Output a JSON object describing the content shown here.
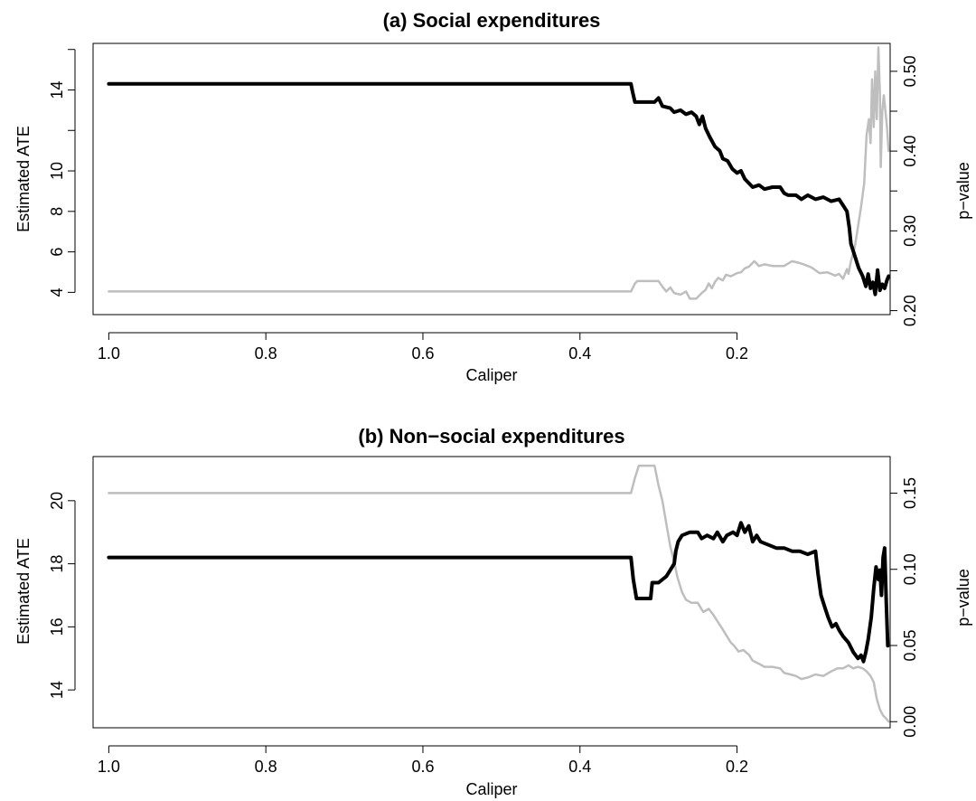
{
  "colors": {
    "ate_line": "#000000",
    "pvalue_line": "#bebebe",
    "axes": "#000000",
    "background": "#ffffff"
  },
  "chart_data": [
    {
      "type": "line",
      "title": "(a) Social expenditures",
      "xlabel": "Caliper",
      "ylabel_left": "Estimated ATE",
      "ylabel_right": "p−value",
      "x_reversed": true,
      "xlim": [
        1.02,
        0.005
      ],
      "x_ticks": [
        1.0,
        0.8,
        0.6,
        0.4,
        0.2
      ],
      "x_tick_labels": [
        "1.0",
        "0.8",
        "0.6",
        "0.4",
        "0.2"
      ],
      "ylim_left": [
        2.9,
        16.3
      ],
      "y_ticks_left": [
        4,
        6,
        8,
        10,
        12,
        14,
        16
      ],
      "y_tick_labels_left": [
        "4",
        "6",
        "8",
        "10",
        "",
        "14",
        ""
      ],
      "ylim_right": [
        0.195,
        0.535
      ],
      "y_ticks_right": [
        0.2,
        0.25,
        0.3,
        0.35,
        0.4,
        0.45,
        0.5
      ],
      "y_tick_labels_right": [
        "0.20",
        "",
        "0.30",
        "",
        "0.40",
        "",
        "0.50"
      ],
      "grid": false,
      "series": [
        {
          "axis": "left",
          "values": [
            [
              1.0,
              14.3
            ],
            [
              0.335,
              14.3
            ],
            [
              0.333,
              13.9
            ],
            [
              0.33,
              13.4
            ],
            [
              0.305,
              13.4
            ],
            [
              0.3,
              13.6
            ],
            [
              0.295,
              13.2
            ],
            [
              0.285,
              13.1
            ],
            [
              0.28,
              12.9
            ],
            [
              0.272,
              13.0
            ],
            [
              0.265,
              12.8
            ],
            [
              0.258,
              12.9
            ],
            [
              0.252,
              12.7
            ],
            [
              0.248,
              12.3
            ],
            [
              0.244,
              12.7
            ],
            [
              0.24,
              12.1
            ],
            [
              0.235,
              11.7
            ],
            [
              0.228,
              11.2
            ],
            [
              0.222,
              11.0
            ],
            [
              0.218,
              10.6
            ],
            [
              0.212,
              10.5
            ],
            [
              0.206,
              10.1
            ],
            [
              0.2,
              9.9
            ],
            [
              0.195,
              10.0
            ],
            [
              0.19,
              9.6
            ],
            [
              0.18,
              9.2
            ],
            [
              0.172,
              9.3
            ],
            [
              0.165,
              9.1
            ],
            [
              0.155,
              9.2
            ],
            [
              0.145,
              9.2
            ],
            [
              0.14,
              8.9
            ],
            [
              0.135,
              8.8
            ],
            [
              0.125,
              8.8
            ],
            [
              0.118,
              8.6
            ],
            [
              0.11,
              8.8
            ],
            [
              0.1,
              8.6
            ],
            [
              0.09,
              8.7
            ],
            [
              0.08,
              8.5
            ],
            [
              0.07,
              8.6
            ],
            [
              0.065,
              8.3
            ],
            [
              0.06,
              8.0
            ],
            [
              0.057,
              7.2
            ],
            [
              0.055,
              6.4
            ],
            [
              0.05,
              5.8
            ],
            [
              0.045,
              5.2
            ],
            [
              0.04,
              4.8
            ],
            [
              0.036,
              4.3
            ],
            [
              0.033,
              4.9
            ],
            [
              0.03,
              4.2
            ],
            [
              0.027,
              4.5
            ],
            [
              0.024,
              3.9
            ],
            [
              0.021,
              5.1
            ],
            [
              0.018,
              4.1
            ],
            [
              0.015,
              4.4
            ],
            [
              0.012,
              4.2
            ],
            [
              0.009,
              4.6
            ],
            [
              0.007,
              4.8
            ]
          ]
        },
        {
          "axis": "right",
          "values": [
            [
              1.0,
              0.224
            ],
            [
              0.335,
              0.224
            ],
            [
              0.33,
              0.234
            ],
            [
              0.327,
              0.237
            ],
            [
              0.3,
              0.237
            ],
            [
              0.295,
              0.23
            ],
            [
              0.29,
              0.224
            ],
            [
              0.285,
              0.229
            ],
            [
              0.28,
              0.222
            ],
            [
              0.272,
              0.22
            ],
            [
              0.265,
              0.224
            ],
            [
              0.26,
              0.215
            ],
            [
              0.252,
              0.215
            ],
            [
              0.245,
              0.222
            ],
            [
              0.24,
              0.226
            ],
            [
              0.236,
              0.234
            ],
            [
              0.232,
              0.228
            ],
            [
              0.228,
              0.236
            ],
            [
              0.224,
              0.241
            ],
            [
              0.218,
              0.238
            ],
            [
              0.214,
              0.245
            ],
            [
              0.208,
              0.243
            ],
            [
              0.2,
              0.247
            ],
            [
              0.195,
              0.248
            ],
            [
              0.19,
              0.253
            ],
            [
              0.185,
              0.255
            ],
            [
              0.178,
              0.262
            ],
            [
              0.172,
              0.256
            ],
            [
              0.165,
              0.258
            ],
            [
              0.155,
              0.256
            ],
            [
              0.14,
              0.256
            ],
            [
              0.13,
              0.262
            ],
            [
              0.122,
              0.26
            ],
            [
              0.115,
              0.258
            ],
            [
              0.105,
              0.254
            ],
            [
              0.095,
              0.247
            ],
            [
              0.085,
              0.248
            ],
            [
              0.075,
              0.244
            ],
            [
              0.07,
              0.246
            ],
            [
              0.065,
              0.24
            ],
            [
              0.06,
              0.252
            ],
            [
              0.058,
              0.246
            ],
            [
              0.055,
              0.262
            ],
            [
              0.05,
              0.28
            ],
            [
              0.046,
              0.305
            ],
            [
              0.042,
              0.33
            ],
            [
              0.038,
              0.36
            ],
            [
              0.035,
              0.42
            ],
            [
              0.032,
              0.44
            ],
            [
              0.03,
              0.41
            ],
            [
              0.028,
              0.49
            ],
            [
              0.026,
              0.43
            ],
            [
              0.024,
              0.5
            ],
            [
              0.022,
              0.44
            ],
            [
              0.02,
              0.53
            ],
            [
              0.018,
              0.47
            ],
            [
              0.017,
              0.38
            ],
            [
              0.015,
              0.45
            ],
            [
              0.013,
              0.47
            ],
            [
              0.011,
              0.45
            ],
            [
              0.009,
              0.43
            ],
            [
              0.007,
              0.4
            ]
          ]
        }
      ]
    },
    {
      "type": "line",
      "title": "(b) Non−social expenditures",
      "xlabel": "Caliper",
      "ylabel_left": "Estimated ATE",
      "ylabel_right": "p−value",
      "x_reversed": true,
      "xlim": [
        1.02,
        0.005
      ],
      "x_ticks": [
        1.0,
        0.8,
        0.6,
        0.4,
        0.2
      ],
      "x_tick_labels": [
        "1.0",
        "0.8",
        "0.6",
        "0.4",
        "0.2"
      ],
      "ylim_left": [
        12.8,
        21.4
      ],
      "y_ticks_left": [
        14,
        16,
        18,
        20
      ],
      "y_tick_labels_left": [
        "14",
        "16",
        "18",
        "20"
      ],
      "ylim_right": [
        -0.004,
        0.174
      ],
      "y_ticks_right": [
        0.0,
        0.05,
        0.1,
        0.15
      ],
      "y_tick_labels_right": [
        "0.00",
        "0.05",
        "0.10",
        "0.15"
      ],
      "grid": false,
      "series": [
        {
          "axis": "left",
          "values": [
            [
              1.0,
              18.2
            ],
            [
              0.335,
              18.2
            ],
            [
              0.332,
              17.5
            ],
            [
              0.328,
              16.9
            ],
            [
              0.31,
              16.9
            ],
            [
              0.308,
              17.4
            ],
            [
              0.3,
              17.4
            ],
            [
              0.295,
              17.5
            ],
            [
              0.29,
              17.6
            ],
            [
              0.285,
              17.8
            ],
            [
              0.28,
              18.0
            ],
            [
              0.278,
              18.4
            ],
            [
              0.275,
              18.7
            ],
            [
              0.27,
              18.9
            ],
            [
              0.26,
              19.0
            ],
            [
              0.25,
              19.0
            ],
            [
              0.245,
              18.8
            ],
            [
              0.238,
              18.9
            ],
            [
              0.23,
              18.8
            ],
            [
              0.225,
              19.0
            ],
            [
              0.218,
              18.7
            ],
            [
              0.213,
              18.9
            ],
            [
              0.205,
              19.0
            ],
            [
              0.2,
              18.9
            ],
            [
              0.195,
              19.3
            ],
            [
              0.19,
              19.0
            ],
            [
              0.185,
              19.2
            ],
            [
              0.18,
              18.7
            ],
            [
              0.175,
              18.9
            ],
            [
              0.17,
              18.7
            ],
            [
              0.16,
              18.6
            ],
            [
              0.15,
              18.5
            ],
            [
              0.14,
              18.5
            ],
            [
              0.13,
              18.4
            ],
            [
              0.12,
              18.4
            ],
            [
              0.11,
              18.3
            ],
            [
              0.1,
              18.4
            ],
            [
              0.097,
              17.7
            ],
            [
              0.093,
              17.0
            ],
            [
              0.088,
              16.6
            ],
            [
              0.084,
              16.3
            ],
            [
              0.079,
              16.0
            ],
            [
              0.074,
              16.1
            ],
            [
              0.07,
              15.9
            ],
            [
              0.065,
              15.7
            ],
            [
              0.058,
              15.5
            ],
            [
              0.052,
              15.2
            ],
            [
              0.046,
              15.0
            ],
            [
              0.042,
              15.1
            ],
            [
              0.039,
              14.9
            ],
            [
              0.036,
              15.2
            ],
            [
              0.033,
              15.6
            ],
            [
              0.029,
              16.3
            ],
            [
              0.026,
              17.2
            ],
            [
              0.023,
              17.9
            ],
            [
              0.02,
              17.5
            ],
            [
              0.018,
              17.8
            ],
            [
              0.016,
              17.0
            ],
            [
              0.014,
              18.2
            ],
            [
              0.012,
              18.5
            ],
            [
              0.01,
              16.8
            ],
            [
              0.008,
              15.4
            ]
          ]
        },
        {
          "axis": "right",
          "values": [
            [
              1.0,
              0.15
            ],
            [
              0.335,
              0.15
            ],
            [
              0.33,
              0.16
            ],
            [
              0.325,
              0.168
            ],
            [
              0.305,
              0.168
            ],
            [
              0.3,
              0.155
            ],
            [
              0.295,
              0.145
            ],
            [
              0.29,
              0.13
            ],
            [
              0.285,
              0.115
            ],
            [
              0.28,
              0.105
            ],
            [
              0.276,
              0.095
            ],
            [
              0.27,
              0.085
            ],
            [
              0.265,
              0.08
            ],
            [
              0.258,
              0.078
            ],
            [
              0.25,
              0.078
            ],
            [
              0.243,
              0.072
            ],
            [
              0.236,
              0.074
            ],
            [
              0.23,
              0.07
            ],
            [
              0.225,
              0.066
            ],
            [
              0.22,
              0.062
            ],
            [
              0.214,
              0.057
            ],
            [
              0.208,
              0.052
            ],
            [
              0.204,
              0.05
            ],
            [
              0.198,
              0.046
            ],
            [
              0.192,
              0.047
            ],
            [
              0.185,
              0.044
            ],
            [
              0.18,
              0.04
            ],
            [
              0.172,
              0.038
            ],
            [
              0.165,
              0.036
            ],
            [
              0.155,
              0.036
            ],
            [
              0.145,
              0.035
            ],
            [
              0.14,
              0.032
            ],
            [
              0.132,
              0.031
            ],
            [
              0.125,
              0.03
            ],
            [
              0.118,
              0.028
            ],
            [
              0.11,
              0.029
            ],
            [
              0.1,
              0.031
            ],
            [
              0.09,
              0.03
            ],
            [
              0.08,
              0.033
            ],
            [
              0.072,
              0.035
            ],
            [
              0.065,
              0.035
            ],
            [
              0.058,
              0.037
            ],
            [
              0.052,
              0.035
            ],
            [
              0.046,
              0.036
            ],
            [
              0.04,
              0.035
            ],
            [
              0.035,
              0.033
            ],
            [
              0.03,
              0.03
            ],
            [
              0.026,
              0.026
            ],
            [
              0.022,
              0.015
            ],
            [
              0.018,
              0.008
            ],
            [
              0.014,
              0.004
            ],
            [
              0.01,
              0.002
            ],
            [
              0.007,
              0.0
            ]
          ]
        }
      ]
    }
  ]
}
